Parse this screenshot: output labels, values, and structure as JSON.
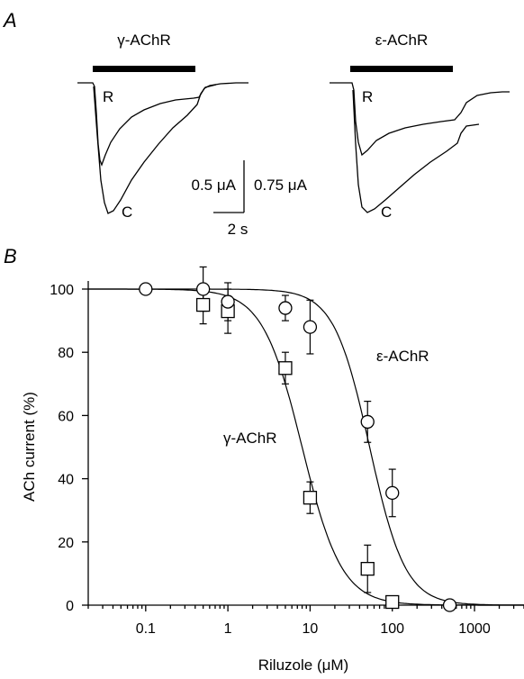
{
  "panel_a": {
    "label": "A",
    "traces": [
      {
        "name": "γ-AChR",
        "label_r": "R",
        "label_c": "C"
      },
      {
        "name": "ε-AChR",
        "label_r": "R",
        "label_c": "C"
      }
    ],
    "scale_left": "0.5 μA",
    "scale_right": "0.75 μA",
    "scale_time": "2 s"
  },
  "panel_b": {
    "label": "B"
  },
  "chart_data": {
    "type": "scatter",
    "xlabel": "Riluzole (μM)",
    "ylabel": "ACh current (%)",
    "xscale": "log",
    "xlim": [
      0.02,
      4000
    ],
    "ylim": [
      0,
      105
    ],
    "xticks": [
      0.1,
      1,
      10,
      100,
      1000
    ],
    "xtick_labels": [
      "0.1",
      "1",
      "10",
      "100",
      "1000"
    ],
    "yticks": [
      0,
      20,
      40,
      60,
      80,
      100
    ],
    "ytick_labels": [
      "0",
      "20",
      "40",
      "60",
      "80",
      "100"
    ],
    "grid": false,
    "series": [
      {
        "name": "γ-AChR",
        "marker": "square",
        "points": [
          {
            "x": 0.5,
            "y": 95,
            "err": 6
          },
          {
            "x": 1,
            "y": 93,
            "err": 7
          },
          {
            "x": 5,
            "y": 75,
            "err": 5
          },
          {
            "x": 10,
            "y": 34,
            "err": 5
          },
          {
            "x": 50,
            "y": 11.5,
            "err": 7.5
          },
          {
            "x": 100,
            "y": 1,
            "err": 0
          }
        ],
        "fit": {
          "ic50": 8,
          "hill": 1.8
        }
      },
      {
        "name": "ε-AChR",
        "marker": "circle",
        "points": [
          {
            "x": 0.1,
            "y": 100,
            "err": 0
          },
          {
            "x": 0.5,
            "y": 100,
            "err": 7
          },
          {
            "x": 1,
            "y": 96,
            "err": 6
          },
          {
            "x": 5,
            "y": 94,
            "err": 4
          },
          {
            "x": 10,
            "y": 88,
            "err": 8.5
          },
          {
            "x": 50,
            "y": 58,
            "err": 6.5
          },
          {
            "x": 100,
            "y": 35.5,
            "err": 7.5
          },
          {
            "x": 500,
            "y": 0,
            "err": 0
          }
        ],
        "fit": {
          "ic50": 53,
          "hill": 2.0
        }
      }
    ]
  }
}
